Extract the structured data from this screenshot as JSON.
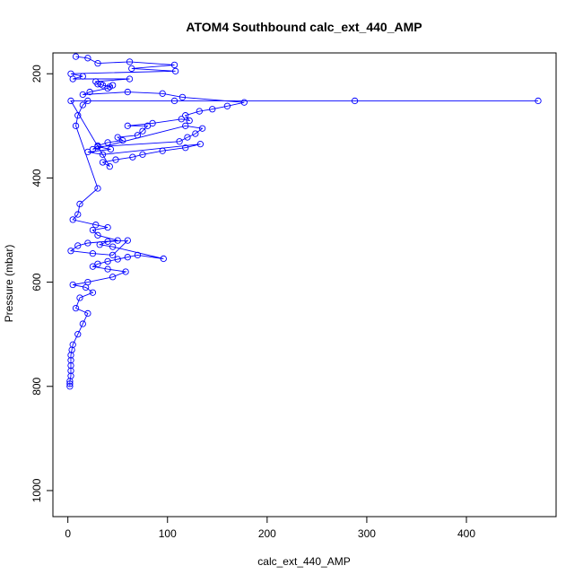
{
  "chart_data": {
    "type": "line",
    "title": "ATOM4 Southbound calc_ext_440_AMP",
    "xlabel": "calc_ext_440_AMP",
    "ylabel": "Pressure (mbar)",
    "xlim": [
      -15,
      490
    ],
    "ylim": [
      1050,
      160
    ],
    "y_reversed": true,
    "grid": false,
    "legend": "none",
    "xticks": [
      0,
      100,
      200,
      300,
      400
    ],
    "yticks": [
      200,
      400,
      600,
      800,
      1000
    ],
    "series_color": "#0000ff",
    "marker": "open-circle",
    "series": [
      {
        "x": [
          8,
          20,
          30,
          62,
          107,
          64,
          108,
          3,
          15,
          5,
          62,
          28,
          30,
          33,
          35,
          42,
          45,
          40,
          22,
          15,
          60,
          95,
          115,
          177,
          160,
          145,
          132,
          118,
          122,
          114,
          85,
          60,
          80,
          75,
          70,
          50,
          55,
          40,
          30,
          25,
          118,
          135,
          128,
          120,
          112,
          30,
          43,
          20,
          35,
          133,
          118,
          95,
          75,
          65,
          48,
          35,
          42,
          3,
          472,
          288,
          107,
          20,
          15,
          10,
          8,
          30,
          12,
          10,
          5,
          28,
          40,
          25,
          30,
          50,
          20,
          10,
          3,
          25,
          45,
          60,
          40,
          32,
          45,
          96,
          70,
          60,
          50,
          40,
          30,
          25,
          40,
          58,
          45,
          20,
          5,
          18,
          25,
          12,
          8,
          20,
          15,
          10,
          5,
          4,
          3,
          3,
          3,
          3,
          3,
          2,
          2,
          2
        ],
        "y": [
          167,
          170,
          180,
          177,
          183,
          190,
          195,
          200,
          205,
          210,
          210,
          215,
          220,
          220,
          222,
          225,
          222,
          228,
          235,
          240,
          235,
          238,
          245,
          255,
          262,
          268,
          272,
          280,
          290,
          287,
          295,
          300,
          300,
          310,
          318,
          322,
          328,
          332,
          338,
          345,
          300,
          305,
          315,
          322,
          330,
          340,
          345,
          350,
          355,
          335,
          342,
          348,
          355,
          360,
          365,
          370,
          378,
          252,
          252,
          252,
          252,
          252,
          260,
          280,
          300,
          420,
          450,
          470,
          480,
          490,
          495,
          500,
          510,
          520,
          525,
          530,
          540,
          545,
          548,
          520,
          522,
          528,
          532,
          555,
          548,
          552,
          556,
          560,
          565,
          570,
          575,
          580,
          590,
          600,
          605,
          610,
          620,
          630,
          650,
          660,
          680,
          700,
          720,
          730,
          740,
          750,
          760,
          770,
          780,
          790,
          795,
          800
        ]
      }
    ]
  }
}
